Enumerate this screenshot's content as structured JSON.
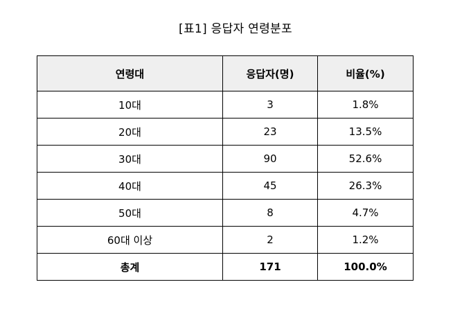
{
  "caption": "[표1] 응답자 연령분포",
  "table": {
    "headers": [
      "연령대",
      "응답자(명)",
      "비율(%)"
    ],
    "rows": [
      [
        "10대",
        "3",
        "1.8%"
      ],
      [
        "20대",
        "23",
        "13.5%"
      ],
      [
        "30대",
        "90",
        "52.6%"
      ],
      [
        "40대",
        "45",
        "26.3%"
      ],
      [
        "50대",
        "8",
        "4.7%"
      ],
      [
        "60대 이상",
        "2",
        "1.2%"
      ]
    ],
    "total": [
      "총계",
      "171",
      "100.0%"
    ]
  }
}
